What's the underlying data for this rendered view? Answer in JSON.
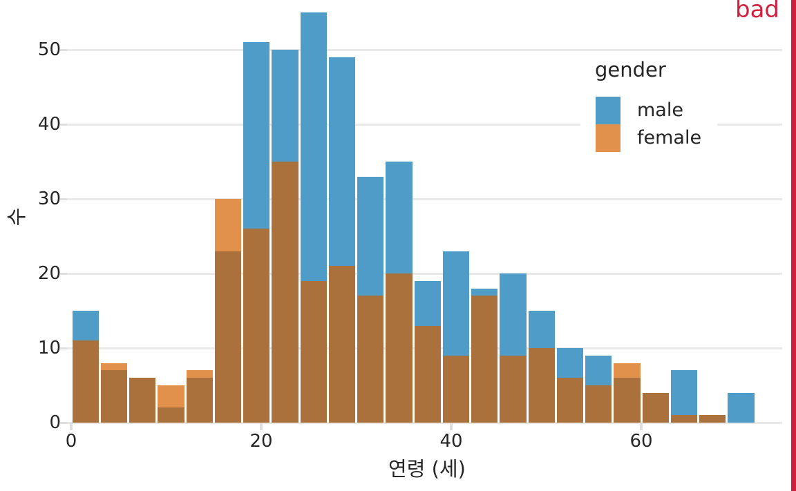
{
  "annotation": {
    "text": "bad",
    "color": "#d0203f"
  },
  "accent_strip_color": "#d0203f",
  "chart_data": {
    "type": "bar",
    "subtype": "overlaid-histogram",
    "title": "",
    "xlabel": "연령 (세)",
    "ylabel": "수",
    "legend": {
      "title": "gender",
      "position": "upper right",
      "entries": [
        "male",
        "female"
      ]
    },
    "grid": "horizontal",
    "bins": {
      "start": 0,
      "width": 3,
      "count": 24
    },
    "bin_edges": [
      0,
      3,
      6,
      9,
      12,
      15,
      18,
      21,
      24,
      27,
      30,
      33,
      36,
      39,
      42,
      45,
      48,
      51,
      54,
      57,
      60,
      63,
      66,
      69,
      72
    ],
    "x_ticks": [
      0,
      20,
      40,
      60
    ],
    "y_ticks": [
      0,
      10,
      20,
      30,
      40,
      50
    ],
    "xlim": [
      0,
      72
    ],
    "ylim": [
      0,
      55
    ],
    "series": [
      {
        "name": "male",
        "color": "#4f9cc8",
        "values": [
          15,
          7,
          6,
          2,
          6,
          23,
          51,
          50,
          55,
          49,
          33,
          35,
          19,
          23,
          18,
          20,
          15,
          10,
          9,
          6,
          4,
          7,
          1,
          4
        ]
      },
      {
        "name": "female",
        "color": "#e2914d",
        "values": [
          11,
          8,
          6,
          5,
          7,
          30,
          26,
          35,
          19,
          21,
          17,
          20,
          13,
          9,
          17,
          9,
          10,
          6,
          5,
          8,
          4,
          1,
          1,
          0
        ]
      }
    ],
    "overlap_color": "#ab713c"
  }
}
